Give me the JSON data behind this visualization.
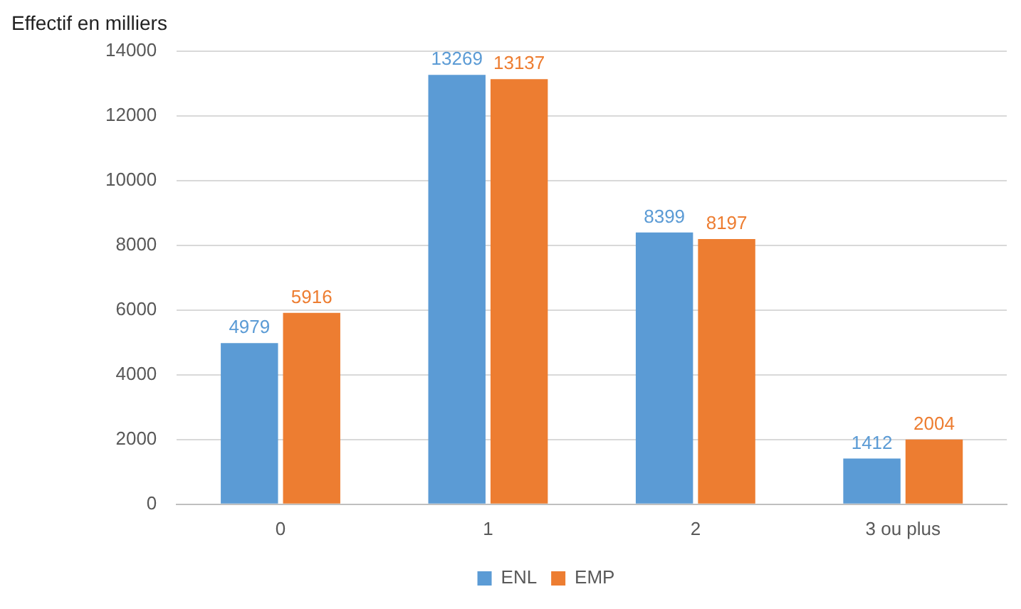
{
  "chart_data": {
    "type": "bar",
    "ylabel": "Effectif en milliers",
    "categories": [
      "0",
      "1",
      "2",
      "3 ou plus"
    ],
    "series": [
      {
        "name": "ENL",
        "color": "#5b9bd5",
        "values": [
          4979,
          13269,
          8399,
          1412
        ]
      },
      {
        "name": "EMP",
        "color": "#ed7d31",
        "values": [
          5916,
          13137,
          8197,
          2004
        ]
      }
    ],
    "ylim": [
      0,
      14000
    ],
    "yticks": [
      0,
      2000,
      4000,
      6000,
      8000,
      10000,
      12000,
      14000
    ],
    "grid": "y",
    "legend": "bottom",
    "data_labels": true
  }
}
